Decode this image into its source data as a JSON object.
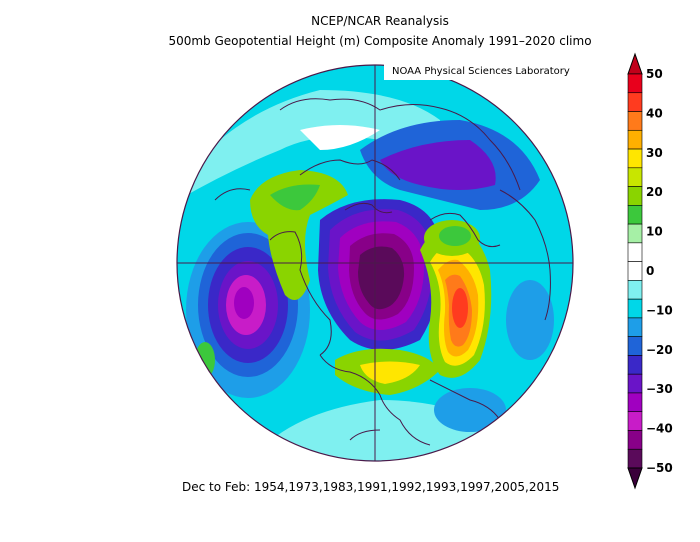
{
  "titles": {
    "line1": "NCEP/NCAR Reanalysis",
    "line2": "500mb Geopotential Height (m) Composite Anomaly 1991–2020 climo",
    "credit": "NOAA Physical Sciences Laboratory"
  },
  "caption": "Dec to Feb: 1954,1973,1983,1991,1992,1993,1997,2005,2015",
  "colorbar": {
    "ticks": [
      "50",
      "40",
      "30",
      "20",
      "10",
      "0",
      "−10",
      "−20",
      "−30",
      "−40",
      "−50"
    ],
    "colors": [
      "#e8001c",
      "#ff3b1f",
      "#ff7a1a",
      "#ffb000",
      "#ffe600",
      "#c8e600",
      "#8ad400",
      "#3cc83c",
      "#a6f0a6",
      "#ffffff",
      "#ffffff",
      "#7ff0f0",
      "#00d7e8",
      "#1e9ee8",
      "#1f64d8",
      "#3a28c8",
      "#6a14c8",
      "#a000c0",
      "#c81cc8",
      "#880088",
      "#5a0a5a"
    ]
  },
  "map": {
    "type": "polar stereographic, Northern Hemisphere",
    "background_color": "#00d7e8"
  }
}
